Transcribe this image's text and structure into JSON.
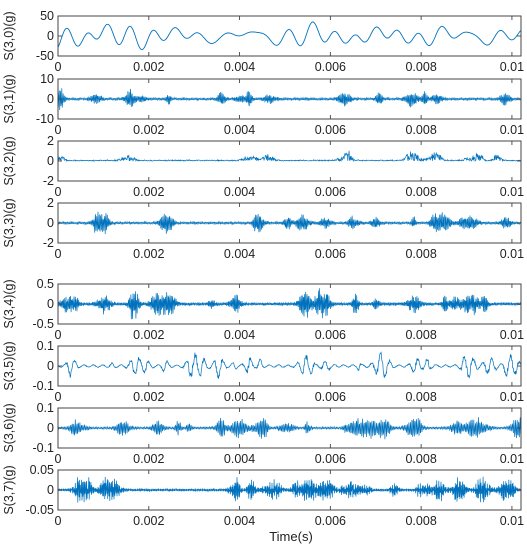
{
  "chart_data": {
    "type": "line",
    "xlabel": "Time(s)",
    "x_ticks": [
      "0",
      "0.002",
      "0.004",
      "0.006",
      "0.008",
      "0.01"
    ],
    "xlim": [
      0,
      0.0102
    ],
    "line_color": "#0072BD",
    "grid": false,
    "panels": [
      {
        "ylabel": "S(3,0)(g)",
        "ylim": [
          -50,
          50
        ],
        "y_ticks": [
          "50",
          "0",
          "-50"
        ],
        "amplitude": 35,
        "character": "low-frequency oscillation"
      },
      {
        "ylabel": "S(3,1)(g)",
        "ylim": [
          -10,
          10
        ],
        "y_ticks": [
          "10",
          "0",
          "-10"
        ],
        "amplitude": 5,
        "character": "decaying bursts"
      },
      {
        "ylabel": "S(3,2)(g)",
        "ylim": [
          -2,
          2
        ],
        "y_ticks": [
          "2",
          "0",
          "-2"
        ],
        "amplitude": 1.4,
        "character": "dense bursts"
      },
      {
        "ylabel": "S(3,3)(g)",
        "ylim": [
          -2,
          2
        ],
        "y_ticks": [
          "2",
          "0",
          "-2"
        ],
        "amplitude": 1.0,
        "character": "bursts"
      },
      {
        "ylabel": "S(3,4)(g)",
        "ylim": [
          -0.5,
          0.5
        ],
        "y_ticks": [
          "0.5",
          "0",
          "-0.5"
        ],
        "amplitude": 0.35,
        "character": "impulses"
      },
      {
        "ylabel": "S(3,5)(g)",
        "ylim": [
          -0.1,
          0.1
        ],
        "y_ticks": [
          "0.1",
          "0",
          "-0.1"
        ],
        "amplitude": 0.06,
        "character": "impulses"
      },
      {
        "ylabel": "S(3,6)(g)",
        "ylim": [
          -0.1,
          0.1
        ],
        "y_ticks": [
          "0.1",
          "0",
          "-0.1"
        ],
        "amplitude": 0.05,
        "character": "impulses"
      },
      {
        "ylabel": "S(3,7)(g)",
        "ylim": [
          -0.05,
          0.05
        ],
        "y_ticks": [
          "0.05",
          "0",
          "-0.05"
        ],
        "amplitude": 0.03,
        "character": "dense impulses"
      }
    ]
  }
}
